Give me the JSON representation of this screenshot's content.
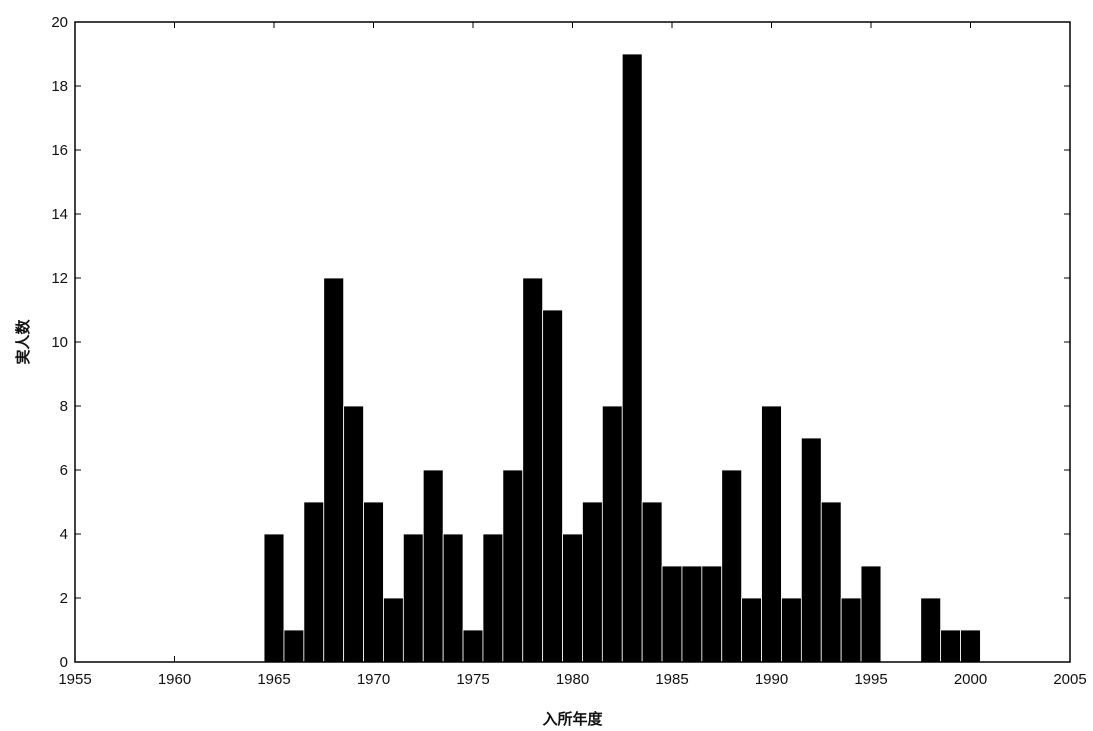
{
  "chart_data": {
    "type": "bar",
    "title": "",
    "xlabel": "入所年度",
    "ylabel": "実人数",
    "xlim": [
      1955,
      2005
    ],
    "ylim": [
      0,
      20
    ],
    "xticks": [
      1955,
      1960,
      1965,
      1970,
      1975,
      1980,
      1985,
      1990,
      1995,
      2000,
      2005
    ],
    "yticks": [
      0,
      2,
      4,
      6,
      8,
      10,
      12,
      14,
      16,
      18,
      20
    ],
    "grid": false,
    "legend": "none",
    "bar_color": "#000000",
    "x": [
      1965,
      1966,
      1967,
      1968,
      1969,
      1970,
      1971,
      1972,
      1973,
      1974,
      1975,
      1976,
      1977,
      1978,
      1979,
      1980,
      1981,
      1982,
      1983,
      1984,
      1985,
      1986,
      1987,
      1988,
      1989,
      1990,
      1991,
      1992,
      1993,
      1994,
      1995,
      1996,
      1997,
      1998,
      1999,
      2000
    ],
    "values": [
      4,
      1,
      5,
      12,
      8,
      5,
      2,
      4,
      6,
      4,
      1,
      4,
      6,
      12,
      11,
      4,
      5,
      8,
      19,
      5,
      3,
      3,
      3,
      6,
      2,
      8,
      2,
      7,
      5,
      2,
      3,
      0,
      0,
      2,
      1,
      1
    ]
  }
}
